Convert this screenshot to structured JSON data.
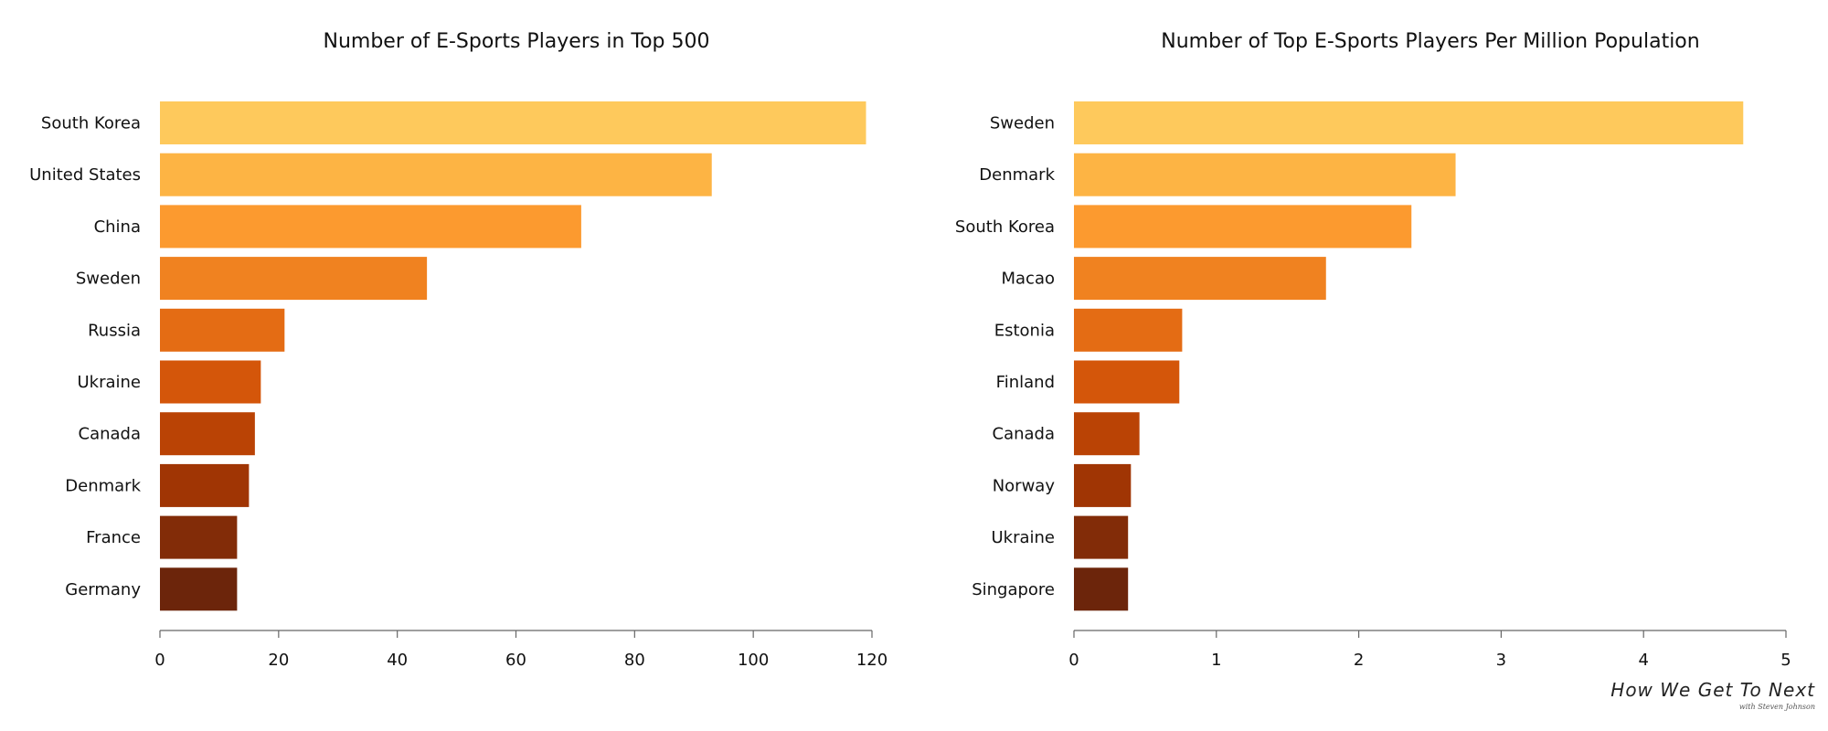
{
  "palette": [
    "#FEC95C",
    "#FDB444",
    "#FC9A2F",
    "#F08220",
    "#E46C14",
    "#D4560A",
    "#BA4305",
    "#A03504",
    "#822C08",
    "#6C250B"
  ],
  "chart_data": [
    {
      "type": "bar",
      "orientation": "horizontal",
      "title": "Number of E-Sports Players in Top 500",
      "categories": [
        "South Korea",
        "United States",
        "China",
        "Sweden",
        "Russia",
        "Ukraine",
        "Canada",
        "Denmark",
        "France",
        "Germany"
      ],
      "values": [
        119,
        93,
        71,
        45,
        21,
        17,
        16,
        15,
        13,
        13
      ],
      "xlim": [
        0,
        120
      ],
      "xticks": [
        0,
        20,
        40,
        60,
        80,
        100,
        120
      ],
      "grid": false
    },
    {
      "type": "bar",
      "orientation": "horizontal",
      "title": "Number of Top E-Sports Players Per Million Population",
      "categories": [
        "Sweden",
        "Denmark",
        "South Korea",
        "Macao",
        "Estonia",
        "Finland",
        "Canada",
        "Norway",
        "Ukraine",
        "Singapore"
      ],
      "values": [
        4.7,
        2.68,
        2.37,
        1.77,
        0.76,
        0.74,
        0.46,
        0.4,
        0.38,
        0.38
      ],
      "xlim": [
        0,
        5
      ],
      "xticks": [
        0,
        1,
        2,
        3,
        4,
        5
      ],
      "grid": false
    }
  ],
  "branding": {
    "main": "How We Get To Next",
    "sub": "with Steven Johnson"
  }
}
